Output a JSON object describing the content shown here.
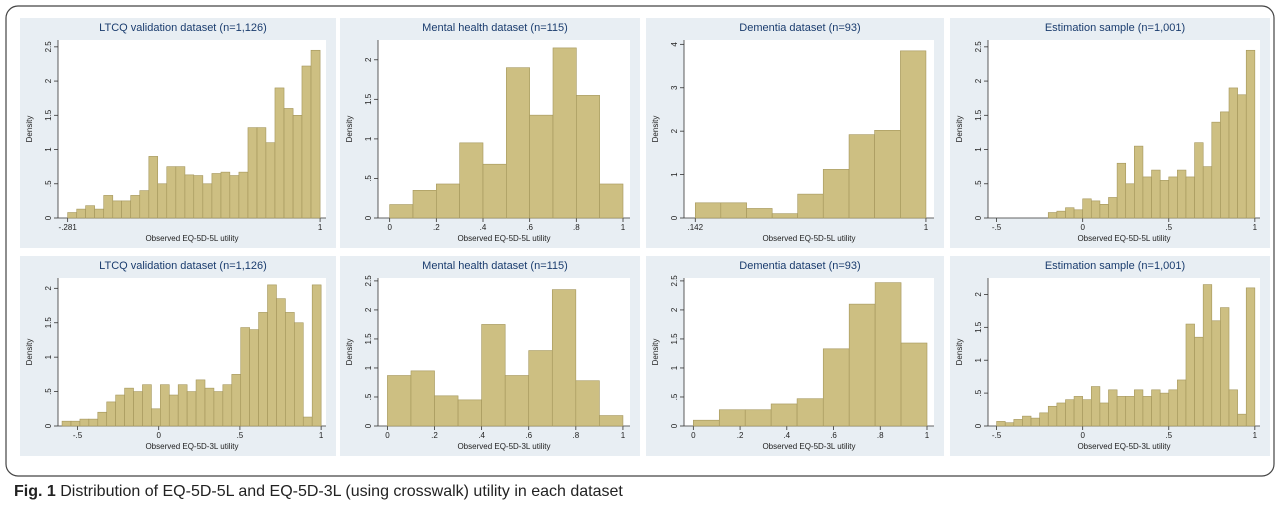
{
  "chart_data": [
    {
      "type": "histogram",
      "title": "LTCQ validation dataset (n=1,126)",
      "x_label": "Observed EQ-5D-5L utility",
      "y_label": "Density",
      "color": "#cdbf82",
      "bins": [
        -0.281,
        -0.235,
        -0.19,
        -0.144,
        -0.098,
        -0.052,
        -0.007,
        0.039,
        0.085,
        0.131,
        0.176,
        0.222,
        0.268,
        0.314,
        0.359,
        0.405,
        0.451,
        0.497,
        0.542,
        0.588,
        0.634,
        0.68,
        0.725,
        0.771,
        0.817,
        0.863,
        0.908,
        0.954,
        1.0
      ],
      "values": [
        0.08,
        0.13,
        0.18,
        0.13,
        0.33,
        0.25,
        0.25,
        0.33,
        0.4,
        0.9,
        0.5,
        0.75,
        0.75,
        0.63,
        0.62,
        0.5,
        0.65,
        0.67,
        0.62,
        0.67,
        1.32,
        1.32,
        1.1,
        1.9,
        1.6,
        1.5,
        2.22,
        2.45
      ],
      "xlim": [
        -0.33,
        1.03
      ],
      "ylim": [
        0,
        2.6
      ],
      "xticks": [
        {
          "value": -0.281,
          "label": "-.281"
        },
        1
      ],
      "yticks": [
        0,
        {
          "value": 0.5,
          "label": ".5"
        },
        1,
        {
          "value": 1.5,
          "label": "1.5"
        },
        2,
        {
          "value": 2.5,
          "label": "2.5"
        }
      ]
    },
    {
      "type": "histogram",
      "title": "Mental health dataset (n=115)",
      "x_label": "Observed EQ-5D-5L utility",
      "y_label": "Density",
      "color": "#cdbf82",
      "bins": [
        0,
        0.1,
        0.2,
        0.3,
        0.4,
        0.5,
        0.6,
        0.7,
        0.8,
        0.9,
        1.0
      ],
      "values": [
        0.17,
        0.35,
        0.43,
        0.95,
        0.68,
        1.9,
        1.3,
        2.15,
        1.55,
        0.43
      ],
      "xlim": [
        -0.05,
        1.03
      ],
      "ylim": [
        0,
        2.25
      ],
      "xticks": [
        0,
        {
          "value": 0.2,
          "label": ".2"
        },
        {
          "value": 0.4,
          "label": ".4"
        },
        {
          "value": 0.6,
          "label": ".6"
        },
        {
          "value": 0.8,
          "label": ".8"
        },
        1
      ],
      "yticks": [
        0,
        {
          "value": 0.5,
          "label": ".5"
        },
        1,
        1.5,
        2
      ]
    },
    {
      "type": "histogram",
      "title": "Dementia dataset (n=93)",
      "x_label": "Observed EQ-5D-5L utility",
      "y_label": "Density",
      "color": "#cdbf82",
      "bins": [
        0.142,
        0.237,
        0.333,
        0.428,
        0.523,
        0.618,
        0.714,
        0.809,
        0.905,
        1.0
      ],
      "values": [
        0.35,
        0.35,
        0.22,
        0.1,
        0.55,
        1.12,
        1.92,
        2.02,
        3.85
      ],
      "xlim": [
        0.1,
        1.03
      ],
      "ylim": [
        0,
        4.1
      ],
      "xticks": [
        {
          "value": 0.142,
          "label": ".142"
        },
        1
      ],
      "yticks": [
        0,
        1,
        2,
        3,
        4
      ]
    },
    {
      "type": "histogram",
      "title": "Estimation sample (n=1,001)",
      "x_label": "Observed EQ-5D-5L utility",
      "y_label": "Density",
      "color": "#cdbf82",
      "bins": [
        -0.2,
        -0.15,
        -0.1,
        -0.05,
        0,
        0.05,
        0.1,
        0.15,
        0.2,
        0.25,
        0.3,
        0.35,
        0.4,
        0.45,
        0.5,
        0.55,
        0.6,
        0.65,
        0.7,
        0.75,
        0.8,
        0.85,
        0.9,
        0.95,
        1.0
      ],
      "values": [
        0.08,
        0.1,
        0.15,
        0.12,
        0.28,
        0.25,
        0.2,
        0.3,
        0.8,
        0.5,
        1.05,
        0.6,
        0.7,
        0.55,
        0.6,
        0.7,
        0.6,
        1.1,
        0.75,
        1.4,
        1.55,
        1.9,
        1.8,
        2.45
      ],
      "xlim": [
        -0.55,
        1.03
      ],
      "ylim": [
        0,
        2.6
      ],
      "xticks": [
        {
          "value": -0.5,
          "label": "-.5"
        },
        0,
        {
          "value": 0.5,
          "label": ".5"
        },
        1
      ],
      "yticks": [
        0,
        {
          "value": 0.5,
          "label": ".5"
        },
        1,
        1.5,
        2,
        2.5
      ]
    },
    {
      "type": "histogram",
      "title": "LTCQ validation dataset (n=1,126)",
      "x_label": "Observed EQ-5D-3L utility",
      "y_label": "Density",
      "color": "#cdbf82",
      "bins": [
        -0.595,
        -0.54,
        -0.485,
        -0.43,
        -0.375,
        -0.32,
        -0.265,
        -0.21,
        -0.155,
        -0.1,
        -0.045,
        0.01,
        0.065,
        0.12,
        0.175,
        0.23,
        0.285,
        0.34,
        0.395,
        0.45,
        0.505,
        0.56,
        0.615,
        0.67,
        0.725,
        0.78,
        0.835,
        0.89,
        0.945,
        1.0
      ],
      "values": [
        0.07,
        0.07,
        0.1,
        0.1,
        0.2,
        0.35,
        0.45,
        0.55,
        0.5,
        0.6,
        0.25,
        0.6,
        0.45,
        0.6,
        0.5,
        0.67,
        0.55,
        0.5,
        0.6,
        0.75,
        1.43,
        1.4,
        1.65,
        2.05,
        1.85,
        1.65,
        1.5,
        0.13,
        2.05
      ],
      "xlim": [
        -0.62,
        1.03
      ],
      "ylim": [
        0,
        2.15
      ],
      "xticks": [
        {
          "value": -0.5,
          "label": "-.5"
        },
        0,
        {
          "value": 0.5,
          "label": ".5"
        },
        1
      ],
      "yticks": [
        0,
        {
          "value": 0.5,
          "label": ".5"
        },
        1,
        1.5,
        2
      ]
    },
    {
      "type": "histogram",
      "title": "Mental health dataset (n=115)",
      "x_label": "Observed EQ-5D-3L utility",
      "y_label": "Density",
      "color": "#cdbf82",
      "bins": [
        0,
        0.1,
        0.2,
        0.3,
        0.4,
        0.5,
        0.6,
        0.7,
        0.8,
        0.9,
        1.0
      ],
      "values": [
        0.87,
        0.95,
        0.52,
        0.45,
        1.75,
        0.87,
        1.3,
        2.35,
        0.78,
        0.18
      ],
      "xlim": [
        -0.04,
        1.03
      ],
      "ylim": [
        0,
        2.55
      ],
      "xticks": [
        0,
        {
          "value": 0.2,
          "label": ".2"
        },
        {
          "value": 0.4,
          "label": ".4"
        },
        {
          "value": 0.6,
          "label": ".6"
        },
        {
          "value": 0.8,
          "label": ".8"
        },
        1
      ],
      "yticks": [
        0,
        {
          "value": 0.5,
          "label": ".5"
        },
        1,
        1.5,
        2,
        2.5
      ]
    },
    {
      "type": "histogram",
      "title": "Dementia dataset (n=93)",
      "x_label": "Observed EQ-5D-3L utility",
      "y_label": "Density",
      "color": "#cdbf82",
      "bins": [
        0,
        0.111,
        0.222,
        0.333,
        0.444,
        0.556,
        0.667,
        0.778,
        0.889,
        1.0
      ],
      "values": [
        0.1,
        0.28,
        0.28,
        0.38,
        0.47,
        1.33,
        2.1,
        2.47,
        1.43
      ],
      "xlim": [
        -0.04,
        1.03
      ],
      "ylim": [
        0,
        2.55
      ],
      "xticks": [
        0,
        {
          "value": 0.2,
          "label": ".2"
        },
        {
          "value": 0.4,
          "label": ".4"
        },
        {
          "value": 0.6,
          "label": ".6"
        },
        {
          "value": 0.8,
          "label": ".8"
        },
        1
      ],
      "yticks": [
        0,
        {
          "value": 0.5,
          "label": ".5"
        },
        1,
        1.5,
        2,
        2.5
      ]
    },
    {
      "type": "histogram",
      "title": "Estimation sample (n=1,001)",
      "x_label": "Observed EQ-5D-3L utility",
      "y_label": "Density",
      "color": "#cdbf82",
      "bins": [
        -0.5,
        -0.45,
        -0.4,
        -0.35,
        -0.3,
        -0.25,
        -0.2,
        -0.15,
        -0.1,
        -0.05,
        0,
        0.05,
        0.1,
        0.15,
        0.2,
        0.25,
        0.3,
        0.35,
        0.4,
        0.45,
        0.5,
        0.55,
        0.6,
        0.65,
        0.7,
        0.75,
        0.8,
        0.85,
        0.9,
        0.95,
        1.0
      ],
      "values": [
        0.07,
        0.05,
        0.1,
        0.15,
        0.12,
        0.2,
        0.3,
        0.35,
        0.4,
        0.45,
        0.4,
        0.6,
        0.35,
        0.55,
        0.45,
        0.45,
        0.55,
        0.45,
        0.55,
        0.5,
        0.55,
        0.7,
        1.55,
        1.35,
        2.15,
        1.6,
        1.8,
        0.55,
        0.18,
        2.1
      ],
      "xlim": [
        -0.55,
        1.03
      ],
      "ylim": [
        0,
        2.25
      ],
      "xticks": [
        {
          "value": -0.5,
          "label": "-.5"
        },
        0,
        {
          "value": 0.5,
          "label": ".5"
        },
        1
      ],
      "yticks": [
        0,
        {
          "value": 0.5,
          "label": ".5"
        },
        1,
        1.5,
        2
      ]
    }
  ],
  "caption": {
    "label": "Fig. 1",
    "text": "Distribution of EQ-5D-5L and EQ-5D-3L (using crosswalk) utility in each dataset"
  }
}
